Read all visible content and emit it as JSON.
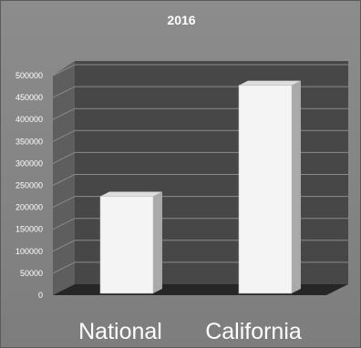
{
  "chart_data": {
    "type": "bar",
    "title": "2016",
    "categories": [
      "National",
      "California"
    ],
    "values": [
      225000,
      478000
    ],
    "ylim": [
      0,
      500000
    ],
    "yticks": [
      0,
      50000,
      100000,
      150000,
      200000,
      250000,
      300000,
      350000,
      400000,
      450000,
      500000
    ],
    "ytick_labels": [
      "0",
      "50000",
      "100000",
      "150000",
      "200000",
      "250000",
      "300000",
      "350000",
      "400000",
      "450000",
      "500000"
    ],
    "grid": true,
    "style": "3d-column",
    "colors": {
      "background": "#858585",
      "back_wall": "#474747",
      "side_wall": "#5e5e5e",
      "floor": "#262626",
      "gridline": "#8a8a8a",
      "bar_front": "#f4f4f4",
      "bar_side": "#a9a9a9",
      "bar_top": "#dedede",
      "text": "#ffffff"
    }
  }
}
